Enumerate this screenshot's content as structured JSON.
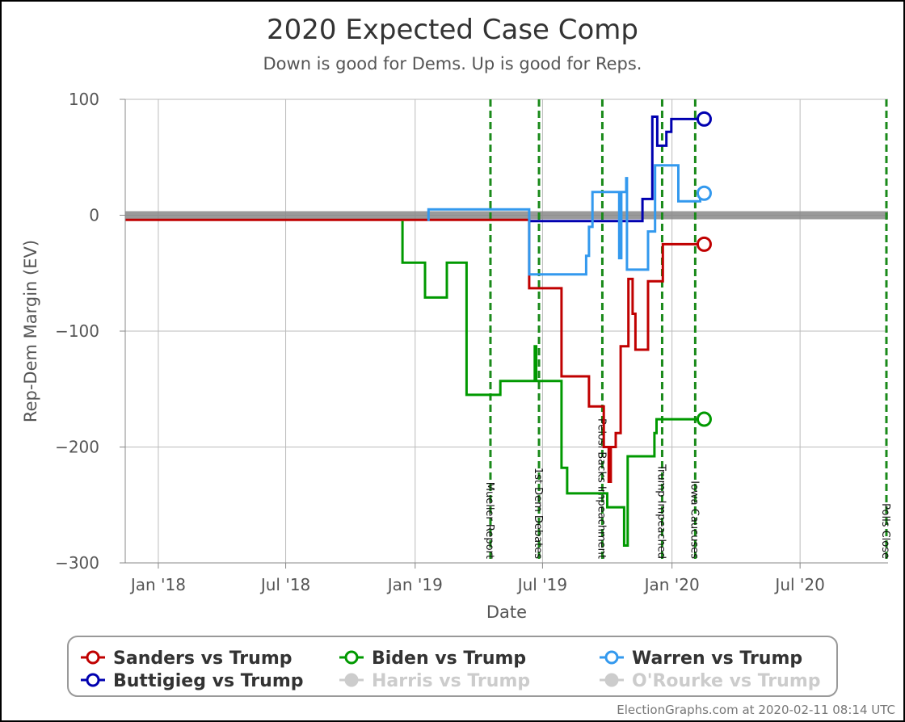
{
  "chart_data": {
    "type": "line",
    "title": "2020 Expected Case Comp",
    "subtitle": "Down is good for Dems. Up is good for Reps.",
    "xlabel": "Date",
    "ylabel": "Rep-Dem Margin (EV)",
    "xlim": [
      "2017-11-15",
      "2020-11-03"
    ],
    "ylim": [
      -300,
      100
    ],
    "y_ticks": [
      {
        "value": 100,
        "label": "100"
      },
      {
        "value": 0,
        "label": "0"
      },
      {
        "value": -100,
        "label": "−100"
      },
      {
        "value": -200,
        "label": "−200"
      },
      {
        "value": -300,
        "label": "−300"
      }
    ],
    "x_ticks": [
      {
        "date": "2018-01-01",
        "label": "Jan '18"
      },
      {
        "date": "2018-07-01",
        "label": "Jul '18"
      },
      {
        "date": "2019-01-01",
        "label": "Jan '19"
      },
      {
        "date": "2019-07-01",
        "label": "Jul '19"
      },
      {
        "date": "2020-01-01",
        "label": "Jan '20"
      },
      {
        "date": "2020-07-01",
        "label": "Jul '20"
      }
    ],
    "grid": true,
    "zero_band_color": "#888888",
    "events": [
      {
        "date": "2019-04-18",
        "label": "Mueller Report"
      },
      {
        "date": "2019-06-26",
        "label": "1st Dem Debates"
      },
      {
        "date": "2019-09-24",
        "label": "Pelosi Backs Impeachment"
      },
      {
        "date": "2019-12-18",
        "label": "Trump Impeached"
      },
      {
        "date": "2020-02-03",
        "label": "Iowa Caucuses"
      },
      {
        "date": "2020-11-03",
        "label": "Polls Close"
      }
    ],
    "event_color": "#1a8a1a",
    "series": [
      {
        "name": "Sanders vs Trump",
        "color": "#c00000",
        "points": [
          [
            "2017-11-15",
            -4
          ],
          [
            "2019-06-12",
            -4
          ],
          [
            "2019-06-12",
            -63
          ],
          [
            "2019-07-28",
            -63
          ],
          [
            "2019-07-28",
            -139
          ],
          [
            "2019-09-05",
            -139
          ],
          [
            "2019-09-05",
            -165
          ],
          [
            "2019-09-26",
            -165
          ],
          [
            "2019-09-26",
            -200
          ],
          [
            "2019-10-03",
            -200
          ],
          [
            "2019-10-03",
            -230
          ],
          [
            "2019-10-06",
            -230
          ],
          [
            "2019-10-06",
            -200
          ],
          [
            "2019-10-13",
            -200
          ],
          [
            "2019-10-13",
            -188
          ],
          [
            "2019-10-20",
            -188
          ],
          [
            "2019-10-20",
            -113
          ],
          [
            "2019-10-31",
            -113
          ],
          [
            "2019-10-31",
            -55
          ],
          [
            "2019-11-06",
            -55
          ],
          [
            "2019-11-06",
            -85
          ],
          [
            "2019-11-10",
            -85
          ],
          [
            "2019-11-10",
            -116
          ],
          [
            "2019-11-28",
            -116
          ],
          [
            "2019-11-28",
            -57
          ],
          [
            "2019-12-19",
            -57
          ],
          [
            "2019-12-19",
            -25
          ],
          [
            "2020-02-10",
            -25
          ]
        ]
      },
      {
        "name": "Buttigieg vs Trump",
        "color": "#0000b0",
        "points": [
          [
            "2019-06-12",
            -5
          ],
          [
            "2019-11-20",
            -5
          ],
          [
            "2019-11-20",
            14
          ],
          [
            "2019-12-04",
            14
          ],
          [
            "2019-12-04",
            85
          ],
          [
            "2019-12-11",
            85
          ],
          [
            "2019-12-11",
            60
          ],
          [
            "2019-12-24",
            60
          ],
          [
            "2019-12-24",
            72
          ],
          [
            "2019-12-31",
            72
          ],
          [
            "2019-12-31",
            83
          ],
          [
            "2020-02-10",
            83
          ]
        ]
      },
      {
        "name": "Biden vs Trump",
        "color": "#009900",
        "points": [
          [
            "2018-12-14",
            -5
          ],
          [
            "2018-12-14",
            -41
          ],
          [
            "2019-01-15",
            -41
          ],
          [
            "2019-01-15",
            -71
          ],
          [
            "2019-02-15",
            -71
          ],
          [
            "2019-02-15",
            -41
          ],
          [
            "2019-03-15",
            -41
          ],
          [
            "2019-03-15",
            -155
          ],
          [
            "2019-04-15",
            -155
          ],
          [
            "2019-05-02",
            -155
          ],
          [
            "2019-05-02",
            -143
          ],
          [
            "2019-06-20",
            -143
          ],
          [
            "2019-06-20",
            -113
          ],
          [
            "2019-06-22",
            -113
          ],
          [
            "2019-06-22",
            -143
          ],
          [
            "2019-07-28",
            -143
          ],
          [
            "2019-07-28",
            -218
          ],
          [
            "2019-08-05",
            -218
          ],
          [
            "2019-08-05",
            -240
          ],
          [
            "2019-10-01",
            -240
          ],
          [
            "2019-10-01",
            -252
          ],
          [
            "2019-10-25",
            -252
          ],
          [
            "2019-10-25",
            -285
          ],
          [
            "2019-10-30",
            -285
          ],
          [
            "2019-10-30",
            -208
          ],
          [
            "2019-12-07",
            -208
          ],
          [
            "2019-12-07",
            -188
          ],
          [
            "2019-12-10",
            -188
          ],
          [
            "2019-12-10",
            -176
          ],
          [
            "2020-02-10",
            -176
          ]
        ]
      },
      {
        "name": "Warren vs Trump",
        "color": "#3399ee",
        "points": [
          [
            "2019-01-20",
            -5
          ],
          [
            "2019-01-20",
            5
          ],
          [
            "2019-06-12",
            5
          ],
          [
            "2019-06-12",
            -51
          ],
          [
            "2019-09-01",
            -51
          ],
          [
            "2019-09-01",
            -35
          ],
          [
            "2019-09-05",
            -35
          ],
          [
            "2019-09-05",
            -10
          ],
          [
            "2019-09-10",
            -10
          ],
          [
            "2019-09-10",
            20
          ],
          [
            "2019-10-18",
            20
          ],
          [
            "2019-10-18",
            -37
          ],
          [
            "2019-10-21",
            -37
          ],
          [
            "2019-10-21",
            20
          ],
          [
            "2019-10-28",
            20
          ],
          [
            "2019-10-28",
            32
          ],
          [
            "2019-10-29",
            32
          ],
          [
            "2019-10-29",
            -47
          ],
          [
            "2019-11-28",
            -47
          ],
          [
            "2019-11-28",
            -14
          ],
          [
            "2019-12-08",
            -14
          ],
          [
            "2019-12-08",
            43
          ],
          [
            "2020-01-10",
            43
          ],
          [
            "2020-01-10",
            12
          ],
          [
            "2020-02-10",
            12
          ],
          [
            "2020-02-10",
            19
          ]
        ]
      }
    ],
    "legend": {
      "placement": "bottom",
      "items": [
        {
          "name": "Sanders vs Trump",
          "color": "#c00000",
          "active": true
        },
        {
          "name": "Biden vs Trump",
          "color": "#009900",
          "active": true
        },
        {
          "name": "Warren vs Trump",
          "color": "#3399ee",
          "active": true
        },
        {
          "name": "Buttigieg vs Trump",
          "color": "#0000b0",
          "active": true
        },
        {
          "name": "Harris vs Trump",
          "color": "#cccccc",
          "active": false
        },
        {
          "name": "O'Rourke vs Trump",
          "color": "#cccccc",
          "active": false
        }
      ]
    },
    "credit": "ElectionGraphs.com at 2020-02-11 08:14 UTC"
  }
}
